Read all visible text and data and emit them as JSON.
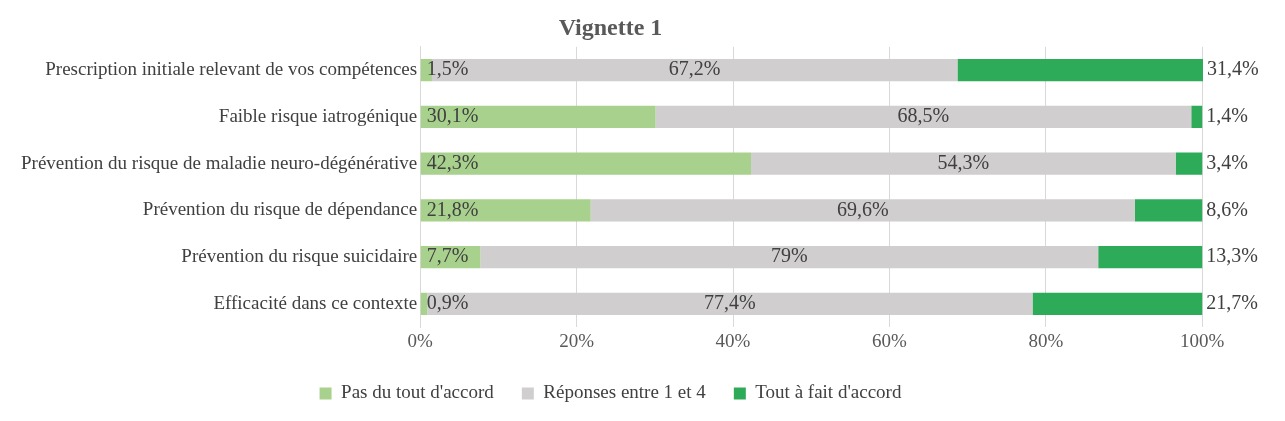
{
  "chart_data": {
    "type": "bar",
    "orientation": "horizontal",
    "stacked": true,
    "title": "Vignette 1",
    "categories": [
      "Prescription initiale relevant de vos compétences",
      "Faible risque iatrogénique",
      "Prévention du risque de maladie neuro-dégénérative",
      "Prévention du risque de dépendance",
      "Prévention du risque suicidaire",
      "Efficacité dans ce contexte"
    ],
    "series": [
      {
        "name": "Pas du tout d'accord",
        "color": "#a9d18e",
        "values": [
          1.5,
          30.1,
          42.3,
          21.8,
          7.7,
          0.9
        ],
        "value_labels": [
          "1,5%",
          "30,1%",
          "42,3%",
          "21,8%",
          "7,7%",
          "0,9%"
        ]
      },
      {
        "name": "Réponses entre 1 et 4",
        "color": "#d0cece",
        "values": [
          67.2,
          68.5,
          54.3,
          69.6,
          79,
          77.4
        ],
        "value_labels": [
          "67,2%",
          "68,5%",
          "54,3%",
          "69,6%",
          "79%",
          "77,4%"
        ]
      },
      {
        "name": "Tout à fait d'accord",
        "color": "#2eab59",
        "values": [
          31.4,
          1.4,
          3.4,
          8.6,
          13.3,
          21.7
        ],
        "value_labels": [
          "31,4%",
          "1,4%",
          "3,4%",
          "8,6%",
          "13,3%",
          "21,7%"
        ]
      }
    ],
    "xlim": [
      0,
      100.1
    ],
    "xticks": [
      {
        "value": 0,
        "label": "0%"
      },
      {
        "value": 20,
        "label": "20%"
      },
      {
        "value": 40,
        "label": "40%"
      },
      {
        "value": 60,
        "label": "60%"
      },
      {
        "value": 80,
        "label": "80%"
      },
      {
        "value": 100,
        "label": "100%"
      }
    ],
    "grid": "x",
    "legend": "bottom"
  }
}
